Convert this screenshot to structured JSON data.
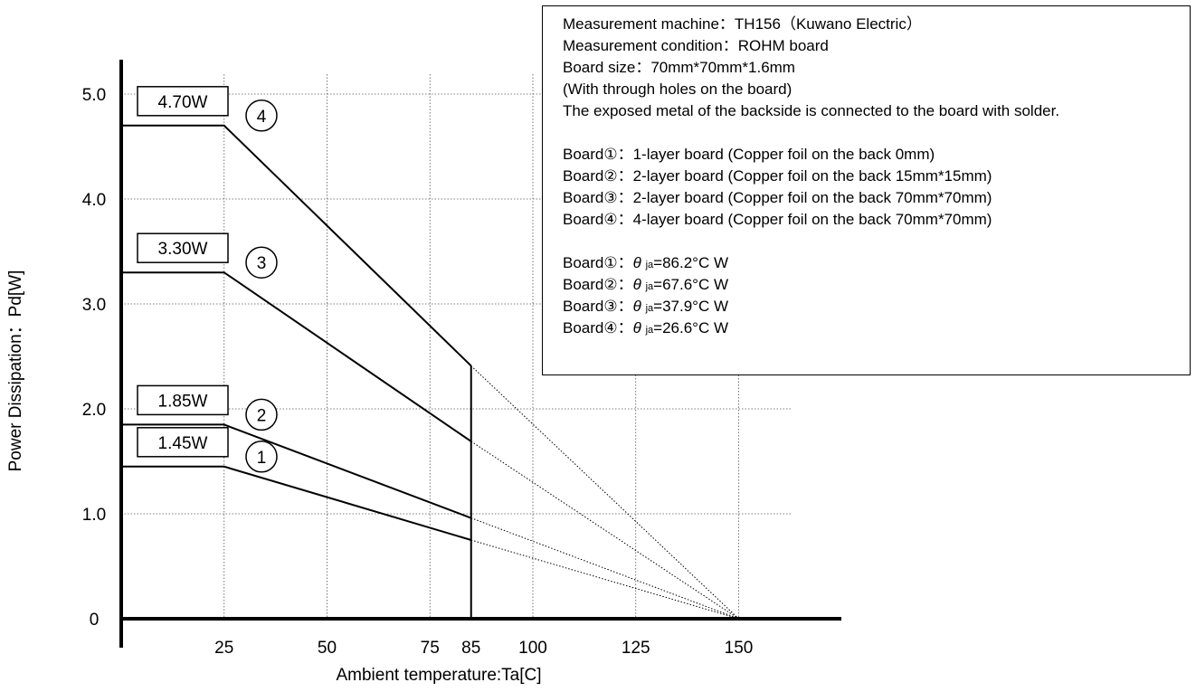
{
  "chart_data": {
    "type": "line",
    "xlabel": "Ambient temperature:Ta[C]",
    "ylabel": "Power Dissipation：Pd[W]",
    "xlim": [
      0,
      165
    ],
    "ylim": [
      0,
      5.0
    ],
    "x_ticks": [
      25,
      50,
      75,
      85,
      100,
      125,
      150
    ],
    "x_tick_labels": [
      "25",
      "50",
      "75",
      "85",
      "100",
      "125",
      "150"
    ],
    "y_ticks": [
      0,
      1.0,
      2.0,
      3.0,
      4.0,
      5.0
    ],
    "y_tick_labels": [
      "0",
      "1.0",
      "2.0",
      "3.0",
      "4.0",
      "5.0"
    ],
    "grid": true,
    "cutoff_x": 85,
    "series": [
      {
        "name": "1",
        "rated_label": "1.45W",
        "points": [
          [
            0,
            1.45
          ],
          [
            25,
            1.45
          ],
          [
            85,
            0.75
          ]
        ],
        "extrapolated": [
          [
            85,
            0.75
          ],
          [
            150,
            0
          ]
        ]
      },
      {
        "name": "2",
        "rated_label": "1.85W",
        "points": [
          [
            0,
            1.85
          ],
          [
            25,
            1.85
          ],
          [
            85,
            0.96
          ]
        ],
        "extrapolated": [
          [
            85,
            0.96
          ],
          [
            150,
            0
          ]
        ]
      },
      {
        "name": "3",
        "rated_label": "3.30W",
        "points": [
          [
            0,
            3.3
          ],
          [
            25,
            3.3
          ],
          [
            85,
            1.69
          ]
        ],
        "extrapolated": [
          [
            85,
            1.69
          ],
          [
            150,
            0
          ]
        ]
      },
      {
        "name": "4",
        "rated_label": "4.70W",
        "points": [
          [
            0,
            4.7
          ],
          [
            25,
            4.7
          ],
          [
            85,
            2.41
          ]
        ],
        "extrapolated": [
          [
            85,
            2.41
          ],
          [
            150,
            0
          ]
        ]
      }
    ],
    "series_markers": [
      "1",
      "2",
      "3",
      "4"
    ],
    "colors": {
      "line": "#000000",
      "grid": "#555555"
    }
  },
  "info": {
    "lines": [
      "Measurement machine：TH156（Kuwano Electric）",
      "Measurement condition：ROHM board",
      "Board size：70mm*70mm*1.6mm",
      "(With through holes on the board)",
      "The exposed metal of the backside is connected to the board with solder."
    ],
    "boards": [
      "Board①：1-layer board (Copper foil on the back 0mm)",
      "Board②：2-layer board (Copper foil on the back 15mm*15mm)",
      "Board③：2-layer board (Copper foil on the back 70mm*70mm)",
      "Board④：4-layer board (Copper foil on the back 70mm*70mm)"
    ],
    "thermal": [
      {
        "prefix": "Board①：",
        "symbol": "θ",
        "sub": "ja",
        "value": "=86.2°C W"
      },
      {
        "prefix": "Board②：",
        "symbol": "θ",
        "sub": "ja",
        "value": "=67.6°C W"
      },
      {
        "prefix": "Board③：",
        "symbol": "θ",
        "sub": "ja",
        "value": "=37.9°C W"
      },
      {
        "prefix": "Board④：",
        "symbol": "θ",
        "sub": "ja",
        "value": "=26.6°C W"
      }
    ]
  }
}
